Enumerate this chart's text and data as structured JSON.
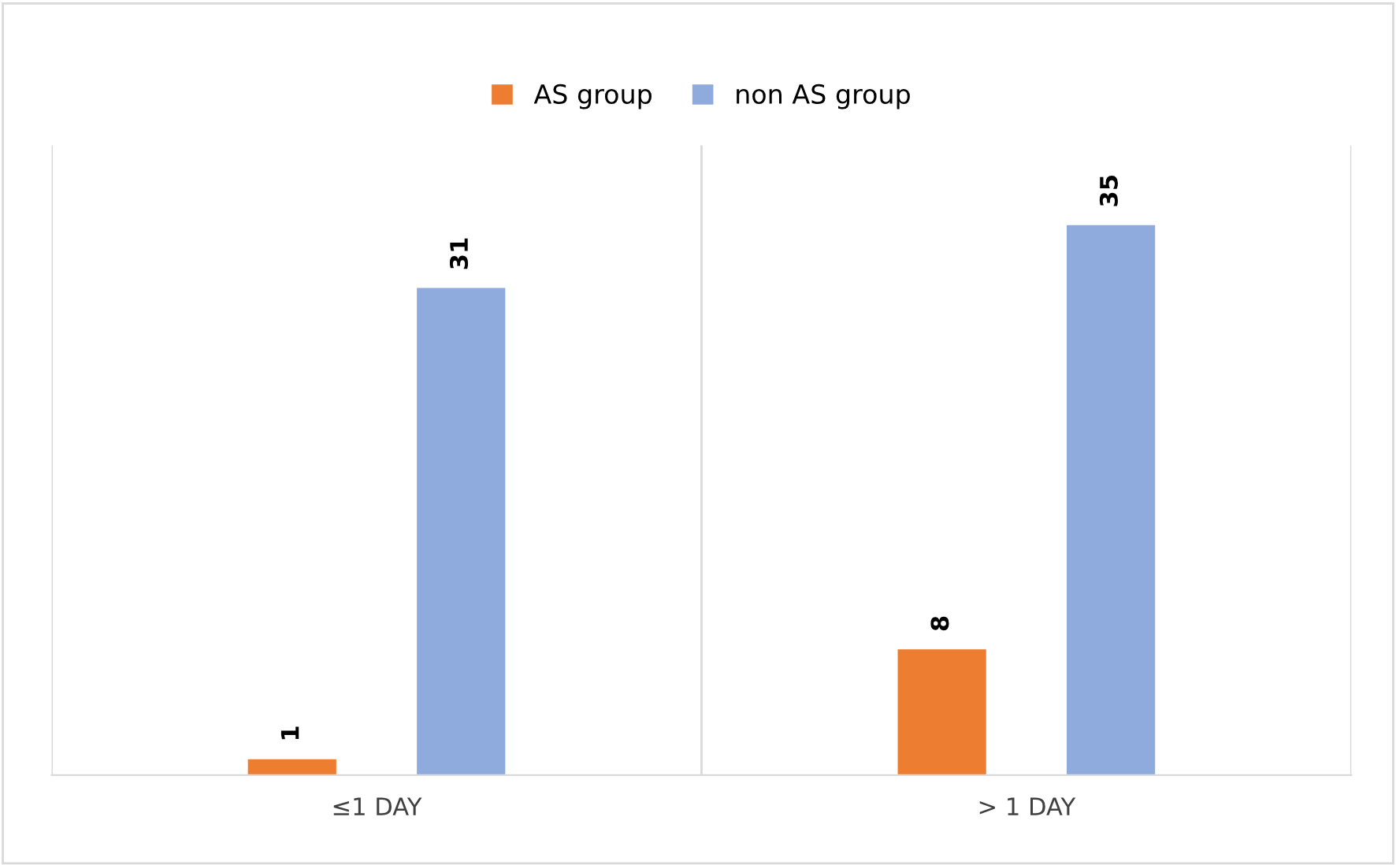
{
  "chart_data": {
    "type": "bar",
    "categories": [
      "≤1 DAY",
      "> 1 DAY"
    ],
    "series": [
      {
        "name": "AS group",
        "color": "#ed7d31",
        "values": [
          1,
          8
        ]
      },
      {
        "name": "non AS group",
        "color": "#8faadc",
        "values": [
          31,
          35
        ]
      }
    ],
    "data_labels": true,
    "legend": "top",
    "grid": "x",
    "tick_labels": "x"
  }
}
